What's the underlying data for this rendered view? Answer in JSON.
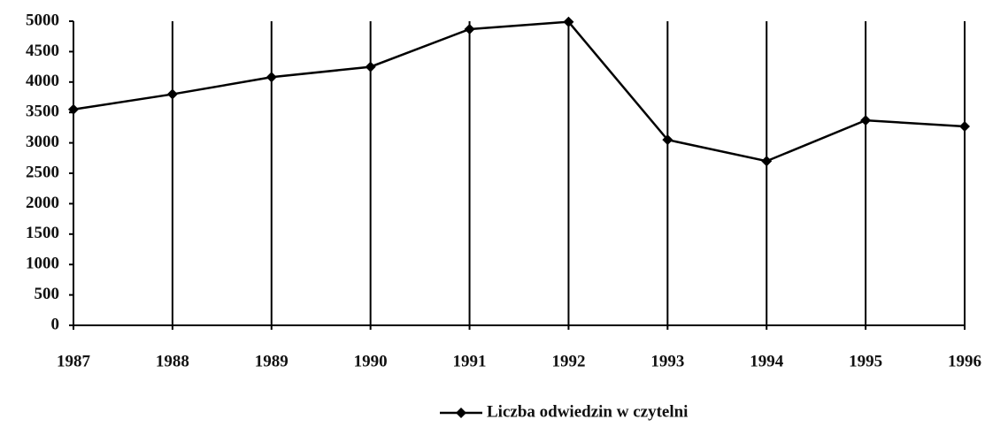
{
  "chart_data": {
    "type": "line",
    "categories": [
      "1987",
      "1988",
      "1989",
      "1990",
      "1991",
      "1992",
      "1993",
      "1994",
      "1995",
      "1996"
    ],
    "series": [
      {
        "name": "Liczba odwiedzin w czytelni",
        "color": "#000000",
        "values": [
          3550,
          3800,
          4080,
          4250,
          4870,
          4990,
          3050,
          2700,
          3370,
          3270
        ]
      }
    ],
    "ylim": [
      0,
      5000
    ],
    "yticks": [
      0,
      500,
      1000,
      1500,
      2000,
      2500,
      3000,
      3500,
      4000,
      4500,
      5000
    ],
    "grid": true,
    "legend": "bottom"
  }
}
